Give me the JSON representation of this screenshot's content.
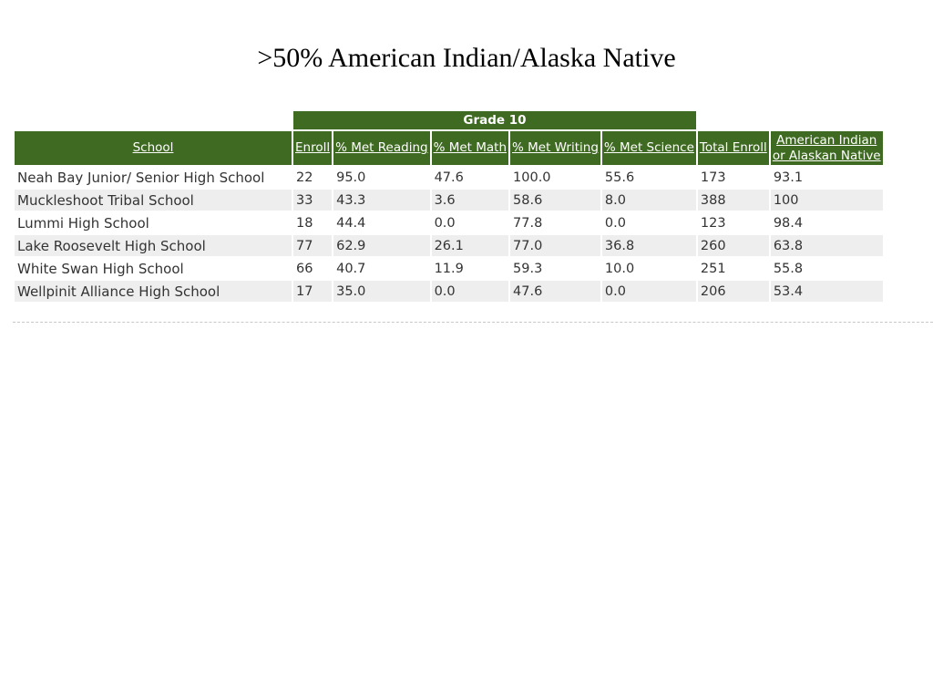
{
  "title": ">50% American Indian/Alaska Native",
  "table": {
    "group_header": "Grade 10",
    "headers": {
      "school": "School",
      "enroll": "Enroll",
      "met_reading": "% Met Reading",
      "met_math": "% Met Math",
      "met_writing": "% Met Writing",
      "met_science": "% Met Science",
      "total_enroll": "Total Enroll",
      "aian_line1": "American Indian",
      "aian_line2": "or Alaskan Native"
    },
    "header_color": "#3f6a21",
    "rows": [
      [
        "Neah Bay Junior/ Senior High School",
        "22",
        "95.0",
        "47.6",
        "100.0",
        "55.6",
        "173",
        "93.1"
      ],
      [
        "Muckleshoot Tribal School",
        "33",
        "43.3",
        "3.6",
        "58.6",
        "8.0",
        "388",
        "100"
      ],
      [
        "Lummi High School",
        "18",
        "44.4",
        "0.0",
        "77.8",
        "0.0",
        "123",
        "98.4"
      ],
      [
        "Lake Roosevelt High School",
        "77",
        "62.9",
        "26.1",
        "77.0",
        "36.8",
        "260",
        "63.8"
      ],
      [
        "White Swan High School",
        "66",
        "40.7",
        "11.9",
        "59.3",
        "10.0",
        "251",
        "55.8"
      ],
      [
        "Wellpinit Alliance High School",
        "17",
        "35.0",
        "0.0",
        "47.6",
        "0.0",
        "206",
        "53.4"
      ]
    ]
  }
}
